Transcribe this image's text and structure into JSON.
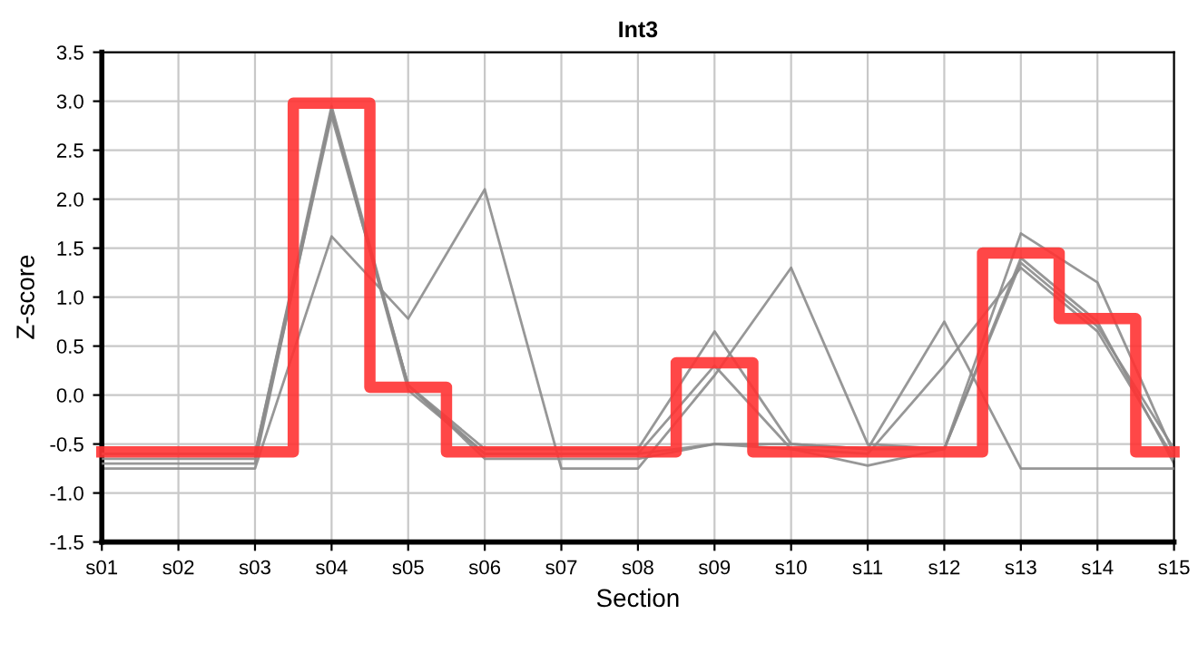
{
  "chart_data": {
    "type": "line",
    "title": "Int3",
    "xlabel": "Section",
    "ylabel": "Z-score",
    "categories": [
      "s01",
      "s02",
      "s03",
      "s04",
      "s05",
      "s06",
      "s07",
      "s08",
      "s09",
      "s10",
      "s11",
      "s12",
      "s13",
      "s14",
      "s15"
    ],
    "ylim": [
      -1.5,
      3.5
    ],
    "yticks": [
      {
        "value": -1.5,
        "label": "-1.5"
      },
      {
        "value": -1.0,
        "label": "-1.0"
      },
      {
        "value": -0.5,
        "label": "-0.5"
      },
      {
        "value": 0.0,
        "label": "0.0"
      },
      {
        "value": 0.5,
        "label": "0.5"
      },
      {
        "value": 1.0,
        "label": "1.0"
      },
      {
        "value": 1.5,
        "label": "1.5"
      },
      {
        "value": 2.0,
        "label": "2.0"
      },
      {
        "value": 2.5,
        "label": "2.5"
      },
      {
        "value": 3.0,
        "label": "3.0"
      },
      {
        "value": 3.5,
        "label": "3.5"
      }
    ],
    "grid": true,
    "legend": false,
    "marker": "none",
    "line_style": "solid",
    "series": [
      {
        "color": "#8c8c8c",
        "values": [
          -0.75,
          -0.75,
          -0.75,
          1.62,
          0.78,
          2.1,
          -0.75,
          -0.75,
          0.2,
          1.3,
          -0.5,
          -0.55,
          1.4,
          0.75,
          -0.7
        ]
      },
      {
        "color": "#8c8c8c",
        "values": [
          -0.7,
          -0.7,
          -0.7,
          2.9,
          0.1,
          -0.55,
          -0.55,
          -0.55,
          0.65,
          -0.5,
          -0.55,
          0.75,
          -0.75,
          -0.75,
          -0.75
        ]
      },
      {
        "color": "#8c8c8c",
        "values": [
          -0.65,
          -0.65,
          -0.65,
          2.85,
          0.1,
          -0.6,
          -0.6,
          -0.6,
          0.3,
          -0.55,
          -0.72,
          -0.55,
          1.65,
          1.15,
          -0.6
        ]
      },
      {
        "color": "#8c8c8c",
        "values": [
          -0.6,
          -0.6,
          -0.6,
          2.95,
          0.1,
          -0.65,
          -0.65,
          -0.65,
          -0.5,
          -0.55,
          -0.6,
          0.3,
          1.3,
          0.65,
          -0.65
        ]
      },
      {
        "color": "#8c8c8c",
        "values": [
          -0.6,
          -0.6,
          -0.6,
          2.9,
          0.05,
          -0.6,
          -0.6,
          -0.6,
          -0.5,
          -0.5,
          -0.55,
          -0.55,
          1.35,
          0.7,
          -0.55
        ]
      },
      {
        "type": "step",
        "color": "#ff3333",
        "values": [
          -0.58,
          -0.58,
          -0.58,
          2.98,
          0.08,
          -0.58,
          -0.58,
          -0.58,
          0.33,
          -0.58,
          -0.58,
          -0.58,
          1.45,
          0.78,
          -0.58
        ]
      }
    ]
  }
}
